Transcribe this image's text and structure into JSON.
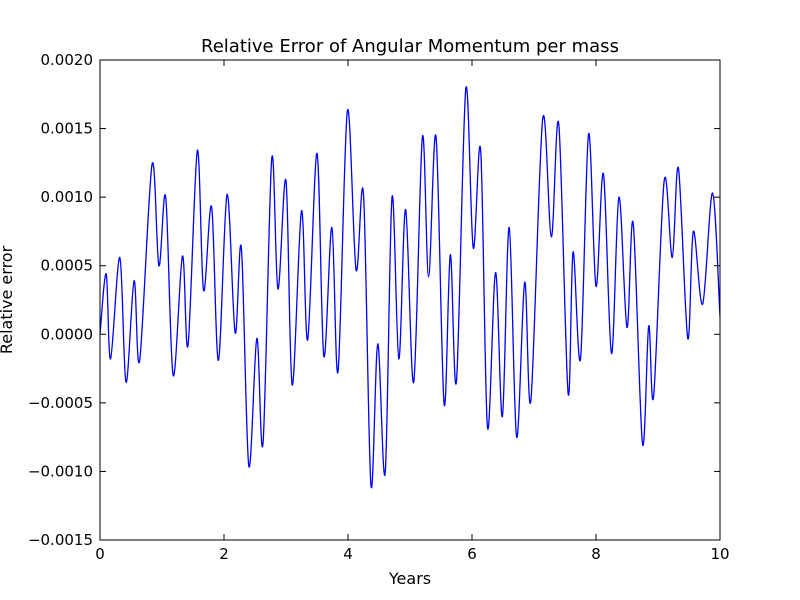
{
  "chart_data": {
    "type": "line",
    "title": "Relative Error of Angular Momentum per mass",
    "xlabel": "Years",
    "ylabel": "Relative error",
    "xlim": [
      0,
      10
    ],
    "ylim": [
      -0.0015,
      0.002
    ],
    "xticks": [
      0,
      2,
      4,
      6,
      8,
      10
    ],
    "xtick_labels": [
      "0",
      "2",
      "4",
      "6",
      "8",
      "10"
    ],
    "yticks": [
      -0.0015,
      -0.001,
      -0.0005,
      0,
      0.0005,
      0.001,
      0.0015,
      0.002
    ],
    "ytick_labels": [
      "−0.0015",
      "−0.0010",
      "−0.0005",
      "0.0000",
      "0.0005",
      "0.0010",
      "0.0015",
      "0.0020"
    ],
    "grid": false,
    "line_color": "#0000ff",
    "series": [
      {
        "x": [
          0.0,
          0.1,
          0.17,
          0.32,
          0.42,
          0.55,
          0.64,
          0.84,
          0.95,
          1.06,
          1.18,
          1.33,
          1.42,
          1.57,
          1.67,
          1.8,
          1.91,
          2.05,
          2.18,
          2.28,
          2.4,
          2.53,
          2.63,
          2.77,
          2.87,
          3.0,
          3.1,
          3.25,
          3.35,
          3.5,
          3.61,
          3.74,
          3.84,
          3.99,
          4.13,
          4.25,
          4.37,
          4.48,
          4.6,
          4.71,
          4.82,
          4.93,
          5.06,
          5.2,
          5.3,
          5.42,
          5.55,
          5.65,
          5.75,
          5.9,
          6.02,
          6.14,
          6.25,
          6.38,
          6.49,
          6.6,
          6.72,
          6.85,
          6.95,
          7.14,
          7.28,
          7.4,
          7.55,
          7.63,
          7.75,
          7.88,
          8.0,
          8.12,
          8.25,
          8.37,
          8.5,
          8.6,
          8.75,
          8.85,
          8.93,
          9.1,
          9.23,
          9.33,
          9.48,
          9.57,
          9.72,
          9.88,
          10.0
        ],
        "y": [
          0.0,
          0.00044,
          -0.00018,
          0.00056,
          -0.00035,
          0.00039,
          -0.00019,
          0.00124,
          0.0005,
          0.001,
          -0.0003,
          0.00057,
          -8e-05,
          0.00134,
          0.00032,
          0.00093,
          -0.00019,
          0.00102,
          1e-05,
          0.00063,
          -0.00096,
          -3e-05,
          -0.00079,
          0.00128,
          0.00033,
          0.00112,
          -0.00037,
          0.0009,
          -4e-05,
          0.00132,
          -0.00016,
          0.00078,
          -0.00027,
          0.00163,
          0.00047,
          0.00102,
          -0.0011,
          -7e-05,
          -0.00101,
          0.001,
          -0.00018,
          0.00091,
          -0.00035,
          0.00144,
          0.00042,
          0.00144,
          -0.00051,
          0.00058,
          -0.00034,
          0.00179,
          0.00063,
          0.00134,
          -0.00068,
          0.00045,
          -0.0006,
          0.00078,
          -0.00075,
          0.00038,
          -0.00048,
          0.00157,
          0.00071,
          0.00153,
          -0.00043,
          0.0006,
          -0.00018,
          0.00146,
          0.00035,
          0.00117,
          -0.00014,
          0.001,
          5e-05,
          0.00081,
          -0.0008,
          6e-05,
          -0.00045,
          0.00112,
          0.00056,
          0.00121,
          -3e-05,
          0.00075,
          0.00022,
          0.00103,
          0.00013
        ]
      }
    ]
  }
}
